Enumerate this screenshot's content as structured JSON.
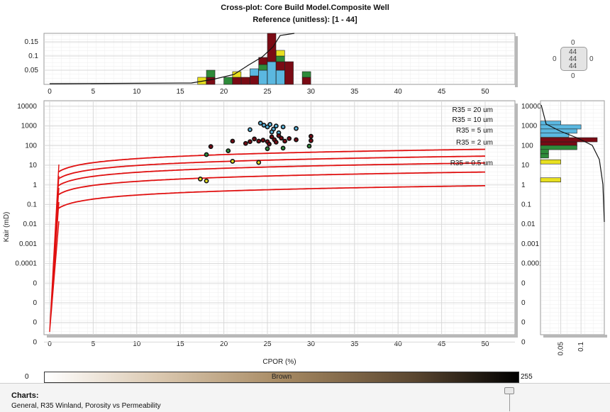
{
  "header": {
    "title": "Cross-plot: Core Build Model.Composite Well",
    "subtitle": "Reference (unitless): [1 - 44]"
  },
  "colorbar": {
    "min_label": "0",
    "max_label": "255",
    "name": "Brown"
  },
  "charts_panel": {
    "title": "Charts:",
    "items": "General, R35 Winland, Porosity vs Permeability"
  },
  "navigator": {
    "top": "0",
    "left": "0",
    "right": "0",
    "bottom": "0",
    "center": [
      "44",
      "44",
      "44"
    ]
  },
  "chart_data": [
    {
      "type": "scatter",
      "name": "main crossplot",
      "xlabel": "CPOR (%)",
      "ylabel": "Kair (mD)",
      "xlim": [
        0,
        52
      ],
      "x_ticks": [
        0,
        5,
        10,
        15,
        20,
        25,
        30,
        35,
        40,
        45,
        50
      ],
      "y_ticks": [
        "10000",
        "1000",
        "100",
        "10",
        "1",
        "0.1",
        "0.01",
        "0.001",
        "0.0001",
        "0",
        "0",
        "0",
        "0"
      ],
      "y_scale": "log",
      "grid": true,
      "winland_curves": [
        {
          "label": "R35 = 20 um",
          "r35": 20
        },
        {
          "label": "R35 = 10 um",
          "r35": 10
        },
        {
          "label": "R35 = 5 um",
          "r35": 5
        },
        {
          "label": "R35 = 2 um",
          "r35": 2
        },
        {
          "label": "R35 = 0.5 um",
          "r35": 0.5
        }
      ],
      "points": [
        {
          "x": 24.2,
          "y": 1400,
          "c": "#5bb8e0"
        },
        {
          "x": 24.6,
          "y": 1100,
          "c": "#5bb8e0"
        },
        {
          "x": 25.0,
          "y": 900,
          "c": "#5bb8e0"
        },
        {
          "x": 25.3,
          "y": 1200,
          "c": "#5bb8e0"
        },
        {
          "x": 25.7,
          "y": 700,
          "c": "#5bb8e0"
        },
        {
          "x": 26.0,
          "y": 1000,
          "c": "#5bb8e0"
        },
        {
          "x": 26.3,
          "y": 450,
          "c": "#5bb8e0"
        },
        {
          "x": 26.8,
          "y": 900,
          "c": "#5bb8e0"
        },
        {
          "x": 25.5,
          "y": 500,
          "c": "#5bb8e0"
        },
        {
          "x": 28.3,
          "y": 750,
          "c": "#5bb8e0"
        },
        {
          "x": 23.0,
          "y": 650,
          "c": "#5bb8e0"
        },
        {
          "x": 18.5,
          "y": 90,
          "c": "#7a0a14"
        },
        {
          "x": 21.0,
          "y": 170,
          "c": "#7a0a14"
        },
        {
          "x": 22.5,
          "y": 130,
          "c": "#7a0a14"
        },
        {
          "x": 23.0,
          "y": 160,
          "c": "#7a0a14"
        },
        {
          "x": 23.5,
          "y": 220,
          "c": "#7a0a14"
        },
        {
          "x": 24.0,
          "y": 170,
          "c": "#7a0a14"
        },
        {
          "x": 24.5,
          "y": 190,
          "c": "#7a0a14"
        },
        {
          "x": 25.0,
          "y": 160,
          "c": "#7a0a14"
        },
        {
          "x": 25.2,
          "y": 120,
          "c": "#7a0a14"
        },
        {
          "x": 25.5,
          "y": 280,
          "c": "#7a0a14"
        },
        {
          "x": 25.8,
          "y": 200,
          "c": "#7a0a14"
        },
        {
          "x": 26.0,
          "y": 150,
          "c": "#7a0a14"
        },
        {
          "x": 26.3,
          "y": 320,
          "c": "#7a0a14"
        },
        {
          "x": 26.6,
          "y": 240,
          "c": "#7a0a14"
        },
        {
          "x": 27.0,
          "y": 170,
          "c": "#7a0a14"
        },
        {
          "x": 27.5,
          "y": 230,
          "c": "#7a0a14"
        },
        {
          "x": 28.3,
          "y": 200,
          "c": "#7a0a14"
        },
        {
          "x": 30.0,
          "y": 300,
          "c": "#7a0a14"
        },
        {
          "x": 30.0,
          "y": 180,
          "c": "#7a0a14"
        },
        {
          "x": 18.0,
          "y": 35,
          "c": "#2e8b3a"
        },
        {
          "x": 20.5,
          "y": 55,
          "c": "#2e8b3a"
        },
        {
          "x": 25.0,
          "y": 70,
          "c": "#2e8b3a"
        },
        {
          "x": 26.8,
          "y": 75,
          "c": "#2e8b3a"
        },
        {
          "x": 29.8,
          "y": 95,
          "c": "#2e8b3a"
        },
        {
          "x": 17.3,
          "y": 2.0,
          "c": "#e8e020"
        },
        {
          "x": 18.0,
          "y": 1.6,
          "c": "#e8e020"
        },
        {
          "x": 21.0,
          "y": 16,
          "c": "#e8e020"
        },
        {
          "x": 24.0,
          "y": 14,
          "c": "#e8e020"
        }
      ]
    },
    {
      "type": "bar",
      "name": "top histogram",
      "y_ticks": [
        "0.05",
        "0.1",
        "0.15"
      ],
      "ylim": [
        0,
        0.18
      ],
      "bins": [
        {
          "x": 17.5,
          "stack": [
            {
              "c": "#e8e020",
              "v": 0.025
            },
            {
              "c": "#7a0a14",
              "v": 0.0
            }
          ]
        },
        {
          "x": 18.5,
          "stack": [
            {
              "c": "#7a0a14",
              "v": 0.025
            },
            {
              "c": "#2e8b3a",
              "v": 0.025
            }
          ]
        },
        {
          "x": 20.5,
          "stack": [
            {
              "c": "#2e8b3a",
              "v": 0.025
            }
          ]
        },
        {
          "x": 21.5,
          "stack": [
            {
              "c": "#7a0a14",
              "v": 0.025
            },
            {
              "c": "#e8e020",
              "v": 0.02
            }
          ]
        },
        {
          "x": 22.5,
          "stack": [
            {
              "c": "#7a0a14",
              "v": 0.025
            }
          ]
        },
        {
          "x": 23.5,
          "stack": [
            {
              "c": "#7a0a14",
              "v": 0.03
            },
            {
              "c": "#5bb8e0",
              "v": 0.025
            }
          ]
        },
        {
          "x": 24.5,
          "stack": [
            {
              "c": "#5bb8e0",
              "v": 0.05
            },
            {
              "c": "#2e8b3a",
              "v": 0.02
            },
            {
              "c": "#7a0a14",
              "v": 0.025
            }
          ]
        },
        {
          "x": 25.5,
          "stack": [
            {
              "c": "#5bb8e0",
              "v": 0.08
            },
            {
              "c": "#7a0a14",
              "v": 0.1
            }
          ]
        },
        {
          "x": 26.5,
          "stack": [
            {
              "c": "#5bb8e0",
              "v": 0.05
            },
            {
              "c": "#7a0a14",
              "v": 0.03
            },
            {
              "c": "#2e8b3a",
              "v": 0.02
            },
            {
              "c": "#e8e020",
              "v": 0.02
            }
          ]
        },
        {
          "x": 27.5,
          "stack": [
            {
              "c": "#7a0a14",
              "v": 0.08
            }
          ]
        },
        {
          "x": 29.5,
          "stack": [
            {
              "c": "#7a0a14",
              "v": 0.025
            },
            {
              "c": "#2e8b3a",
              "v": 0.02
            }
          ]
        }
      ]
    },
    {
      "type": "bar",
      "name": "right histogram",
      "orientation": "horizontal",
      "x_ticks": [
        "0.05",
        "0.1"
      ],
      "xlim": [
        0,
        0.14
      ],
      "bins": [
        {
          "y": 1400,
          "stack": [
            {
              "c": "#5bb8e0",
              "v": 0.05
            }
          ]
        },
        {
          "y": 900,
          "stack": [
            {
              "c": "#5bb8e0",
              "v": 0.1
            }
          ]
        },
        {
          "y": 550,
          "stack": [
            {
              "c": "#5bb8e0",
              "v": 0.09
            }
          ]
        },
        {
          "y": 350,
          "stack": [
            {
              "c": "#5bb8e0",
              "v": 0.07
            }
          ]
        },
        {
          "y": 200,
          "stack": [
            {
              "c": "#7a0a14",
              "v": 0.15
            }
          ]
        },
        {
          "y": 120,
          "stack": [
            {
              "c": "#7a0a14",
              "v": 0.09
            }
          ]
        },
        {
          "y": 80,
          "stack": [
            {
              "c": "#2e8b3a",
              "v": 0.09
            }
          ]
        },
        {
          "y": 50,
          "stack": [
            {
              "c": "#2e8b3a",
              "v": 0.02
            }
          ]
        },
        {
          "y": 30,
          "stack": [
            {
              "c": "#2e8b3a",
              "v": 0.02
            }
          ]
        },
        {
          "y": 15,
          "stack": [
            {
              "c": "#e8e020",
              "v": 0.05
            }
          ]
        },
        {
          "y": 1.8,
          "stack": [
            {
              "c": "#e8e020",
              "v": 0.05
            }
          ]
        }
      ]
    }
  ]
}
